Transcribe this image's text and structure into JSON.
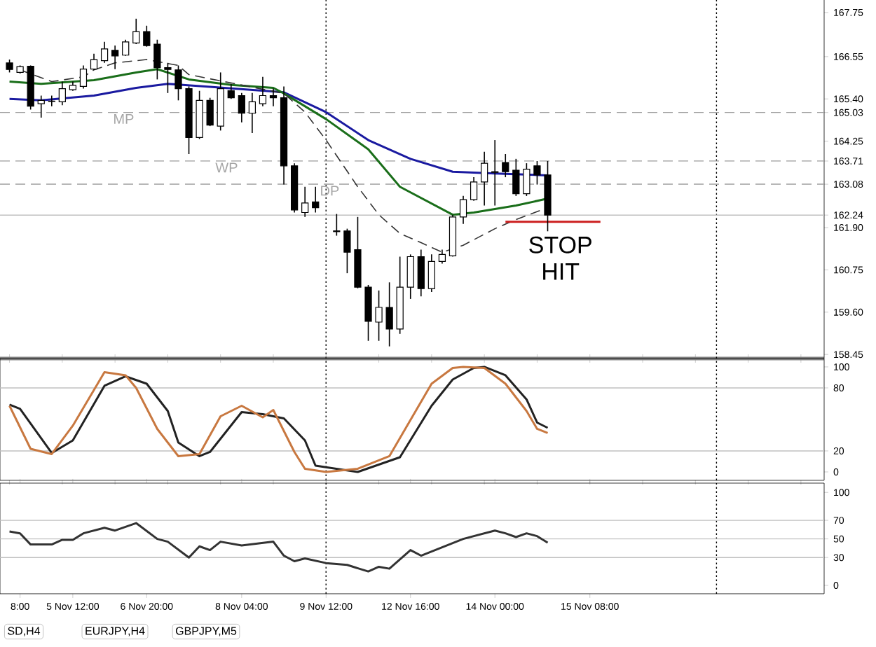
{
  "chart_data": [
    {
      "type": "candlestick",
      "ylim": [
        158.34,
        168.09
      ],
      "tick_labels": "y",
      "categories": [
        null,
        null,
        null,
        null,
        null,
        null,
        null,
        null,
        null,
        null,
        null,
        null,
        null,
        null,
        null,
        null,
        null,
        null,
        null,
        null,
        null,
        null,
        null,
        null,
        null,
        null,
        null,
        null,
        null,
        null,
        null,
        null,
        null,
        null,
        null,
        null,
        null,
        null,
        null,
        null,
        null,
        null,
        null,
        null,
        null,
        null,
        null,
        null,
        null,
        null,
        null,
        null,
        null,
        null,
        null,
        null,
        null,
        null,
        null,
        null,
        null,
        null,
        null,
        null,
        null,
        null,
        null,
        null,
        null,
        null,
        null,
        null,
        null,
        null,
        null,
        null,
        null,
        null
      ],
      "ohlc": [
        [
          166.38,
          166.47,
          166.12,
          166.2
        ],
        [
          166.12,
          166.31,
          166.09,
          166.28
        ],
        [
          166.29,
          166.31,
          165.11,
          165.2
        ],
        [
          165.27,
          165.49,
          164.89,
          165.36
        ],
        [
          165.33,
          165.49,
          165.2,
          165.34
        ],
        [
          165.32,
          165.87,
          165.23,
          165.68
        ],
        [
          165.65,
          165.87,
          165.62,
          165.77
        ],
        [
          165.74,
          166.31,
          165.68,
          166.21
        ],
        [
          166.21,
          166.63,
          166.19,
          166.47
        ],
        [
          166.44,
          166.95,
          166.38,
          166.76
        ],
        [
          166.72,
          166.85,
          166.21,
          166.57
        ],
        [
          166.59,
          167.01,
          166.57,
          166.95
        ],
        [
          166.92,
          167.58,
          166.89,
          167.23
        ],
        [
          167.23,
          167.39,
          166.82,
          166.85
        ],
        [
          166.89,
          167.01,
          165.93,
          166.25
        ],
        [
          166.25,
          166.38,
          165.56,
          166.2
        ],
        [
          166.19,
          166.31,
          165.36,
          165.68
        ],
        [
          165.68,
          165.74,
          163.9,
          164.35
        ],
        [
          164.35,
          165.62,
          164.31,
          165.36
        ],
        [
          165.36,
          165.43,
          164.66,
          164.69
        ],
        [
          164.66,
          166.12,
          164.54,
          165.68
        ],
        [
          165.62,
          165.81,
          165.4,
          165.43
        ],
        [
          165.49,
          165.56,
          164.76,
          165.01
        ],
        [
          165.01,
          165.56,
          164.47,
          165.32
        ],
        [
          165.27,
          166.0,
          165.2,
          165.49
        ],
        [
          165.49,
          165.68,
          165.2,
          165.43
        ],
        [
          165.43,
          165.74,
          163.07,
          163.58
        ],
        [
          163.58,
          163.65,
          162.31,
          162.38
        ],
        [
          162.31,
          163.01,
          162.19,
          162.57
        ],
        [
          162.6,
          163.01,
          162.31,
          162.44
        ],
        null,
        [
          161.81,
          162.27,
          161.68,
          161.79
        ],
        [
          161.81,
          161.87,
          160.66,
          161.23
        ],
        [
          161.3,
          162.19,
          160.25,
          160.28
        ],
        [
          160.28,
          160.34,
          158.82,
          159.35
        ],
        [
          159.33,
          160.19,
          158.82,
          159.73
        ],
        [
          159.73,
          160.41,
          158.67,
          159.14
        ],
        [
          159.14,
          161.11,
          159.01,
          160.28
        ],
        [
          160.28,
          161.17,
          159.96,
          161.11
        ],
        [
          161.11,
          161.3,
          160.03,
          160.24
        ],
        [
          160.24,
          161.17,
          160.15,
          160.98
        ],
        [
          160.98,
          161.3,
          160.92,
          161.17
        ],
        [
          161.13,
          162.25,
          161.11,
          162.19
        ],
        [
          162.19,
          162.76,
          162.0,
          162.66
        ],
        [
          162.66,
          163.27,
          162.63,
          163.14
        ],
        [
          163.14,
          163.96,
          162.5,
          163.65
        ],
        [
          163.4,
          164.28,
          162.5,
          163.42
        ],
        [
          163.67,
          163.9,
          163.27,
          163.42
        ],
        [
          163.46,
          163.77,
          162.76,
          162.82
        ],
        [
          162.82,
          163.65,
          162.76,
          163.49
        ],
        [
          163.58,
          163.71,
          163.07,
          163.33
        ],
        [
          163.33,
          163.71,
          161.8,
          162.24
        ],
        null,
        null,
        null,
        null,
        null,
        null,
        null,
        null,
        null,
        null,
        null,
        null,
        null,
        null,
        null,
        null,
        null,
        null,
        null,
        null,
        null,
        null,
        null,
        null,
        null,
        null
      ],
      "series": [
        {
          "type": "line",
          "color": "#1a1aa0",
          "line_style": "solid",
          "values": [
            165.4,
            null,
            null,
            165.36,
            null,
            null,
            null,
            null,
            165.49,
            null,
            null,
            null,
            165.7,
            null,
            null,
            165.81,
            null,
            null,
            null,
            165.73,
            null,
            null,
            null,
            null,
            null,
            null,
            165.58,
            null,
            null,
            null,
            165.04,
            null,
            null,
            null,
            164.28,
            null,
            null,
            null,
            163.77,
            null,
            null,
            null,
            163.42,
            null,
            null,
            null,
            163.37,
            null,
            null,
            null,
            null,
            163.32,
            null,
            null,
            null,
            null,
            null,
            null,
            null,
            null,
            null,
            null,
            null,
            null,
            null,
            null,
            null,
            null,
            null,
            null,
            null,
            null,
            null,
            null,
            null,
            null,
            null,
            null
          ]
        },
        {
          "type": "line",
          "color": "#1a6e1a",
          "line_style": "solid",
          "values": [
            165.87,
            null,
            null,
            165.81,
            null,
            null,
            null,
            null,
            165.91,
            null,
            null,
            null,
            166.12,
            null,
            166.21,
            null,
            null,
            165.93,
            null,
            null,
            null,
            165.78,
            null,
            null,
            null,
            165.7,
            165.55,
            null,
            null,
            null,
            164.85,
            null,
            null,
            null,
            164.03,
            null,
            null,
            163.01,
            null,
            null,
            null,
            null,
            162.25,
            null,
            162.31,
            null,
            null,
            null,
            162.5,
            null,
            null,
            162.69,
            null,
            null,
            null,
            null,
            null,
            null,
            null,
            null,
            null,
            null,
            null,
            null,
            null,
            null,
            null,
            null,
            null,
            null,
            null,
            null,
            null,
            null,
            null,
            null,
            null,
            null
          ]
        },
        {
          "type": "line",
          "color": "#333333",
          "line_style": "dashed",
          "values": [
            null,
            166.19,
            null,
            null,
            165.87,
            null,
            null,
            166.0,
            166.19,
            null,
            166.38,
            null,
            null,
            166.47,
            null,
            null,
            166.31,
            166.06,
            null,
            null,
            null,
            null,
            null,
            null,
            null,
            null,
            165.55,
            null,
            165.04,
            null,
            164.28,
            null,
            null,
            163.01,
            null,
            162.25,
            null,
            161.74,
            null,
            161.49,
            null,
            161.23,
            null,
            161.42,
            null,
            null,
            161.87,
            null,
            162.12,
            null,
            null,
            162.44,
            null,
            null,
            null,
            null,
            null,
            null,
            null,
            null,
            null,
            null,
            null,
            null,
            null,
            null,
            null,
            null,
            null,
            null,
            null,
            null,
            null,
            null,
            null,
            null,
            null,
            null
          ]
        },
        {
          "type": "line",
          "color": "#cc1f1f",
          "line_style": "solid",
          "values": [
            null,
            null,
            null,
            null,
            null,
            null,
            null,
            null,
            null,
            null,
            null,
            null,
            null,
            null,
            null,
            null,
            null,
            null,
            null,
            null,
            null,
            null,
            null,
            null,
            null,
            null,
            null,
            null,
            null,
            null,
            null,
            null,
            null,
            null,
            null,
            null,
            null,
            null,
            null,
            null,
            null,
            null,
            null,
            null,
            null,
            null,
            null,
            162.06,
            null,
            null,
            null,
            null,
            null,
            null,
            null,
            null,
            162.06,
            null,
            null,
            null,
            null,
            null,
            null,
            null,
            null,
            null,
            null,
            null,
            null,
            null,
            null,
            null,
            null,
            null,
            null,
            null,
            null,
            null
          ]
        }
      ],
      "yticks": [
        {
          "value": 167.75,
          "label": "167.75"
        },
        {
          "value": 166.55,
          "label": "166.55"
        },
        {
          "value": 165.4,
          "label": "165.40"
        },
        {
          "value": 165.03,
          "label": "165.03"
        },
        {
          "value": 164.25,
          "label": "164.25"
        },
        {
          "value": 163.71,
          "label": "163.71"
        },
        {
          "value": 163.08,
          "label": "163.08"
        },
        {
          "value": 162.24,
          "label": "162.24"
        },
        {
          "value": 161.9,
          "label": "161.90"
        },
        {
          "value": 160.75,
          "label": "160.75"
        },
        {
          "value": 159.6,
          "label": "159.60"
        },
        {
          "value": 158.45,
          "label": "158.45"
        }
      ],
      "ref_lines": [
        {
          "axis": "y",
          "value": 165.03,
          "label": "MP",
          "color": "#a0a0a0",
          "line_style": "dashed"
        },
        {
          "axis": "y",
          "value": 163.71,
          "label": "WP",
          "color": "#a0a0a0",
          "line_style": "dashed"
        },
        {
          "axis": "y",
          "value": 163.08,
          "label": "DP",
          "color": "#a0a0a0",
          "line_style": "dashed"
        },
        {
          "axis": "y",
          "value": 162.24,
          "color": "#c0c0c0",
          "line_style": "solid"
        }
      ],
      "annotations": [
        "STOP HIT"
      ]
    },
    {
      "type": "line",
      "ylim": [
        -8,
        108
      ],
      "yticks": [
        0,
        20,
        80,
        100
      ],
      "tick_labels": "y",
      "categories": [
        null,
        null,
        null,
        null,
        null,
        null,
        null,
        null,
        null,
        null,
        null,
        null,
        null,
        null,
        null,
        null,
        null,
        null,
        null,
        null,
        null,
        null,
        null,
        null,
        null,
        null,
        null,
        null,
        null,
        null,
        null,
        null,
        null,
        null,
        null,
        null,
        null,
        null,
        null,
        null,
        null,
        null,
        null,
        null,
        null,
        null,
        null,
        null,
        null,
        null,
        null,
        null,
        null,
        null,
        null,
        null,
        null,
        null,
        null,
        null,
        null,
        null,
        null,
        null,
        null,
        null,
        null,
        null,
        null,
        null,
        null,
        null,
        null,
        null,
        null,
        null,
        null,
        null
      ],
      "series": [
        {
          "color": "#222222",
          "values": [
            64,
            60,
            null,
            null,
            18,
            null,
            30,
            null,
            null,
            82,
            null,
            91,
            null,
            84,
            null,
            58,
            28,
            null,
            15,
            19,
            null,
            null,
            57,
            null,
            55,
            null,
            51,
            null,
            30,
            6,
            null,
            null,
            null,
            0,
            null,
            null,
            null,
            14,
            null,
            null,
            63,
            null,
            88,
            null,
            99,
            100,
            null,
            92,
            null,
            69,
            47,
            42,
            null,
            null,
            null,
            null,
            null,
            null,
            null,
            null,
            null,
            null,
            null,
            null,
            null,
            null,
            null,
            null,
            null,
            null,
            null,
            null,
            null,
            null,
            null,
            null,
            null,
            null
          ]
        },
        {
          "color": "#c87840",
          "values": [
            63,
            null,
            22,
            null,
            17,
            null,
            44,
            null,
            null,
            95,
            null,
            92,
            80,
            null,
            41,
            null,
            15,
            null,
            17,
            null,
            53,
            null,
            63,
            null,
            52,
            59,
            null,
            19,
            3,
            null,
            0,
            null,
            null,
            3,
            null,
            null,
            15,
            null,
            null,
            null,
            84,
            null,
            99,
            100,
            null,
            99,
            null,
            84,
            null,
            58,
            41,
            37,
            null,
            null,
            null,
            null,
            null,
            null,
            null,
            null,
            null,
            null,
            null,
            null,
            null,
            null,
            null,
            null,
            null,
            null,
            null,
            null,
            null,
            null,
            null,
            null,
            null,
            null
          ]
        }
      ],
      "ref_lines": [
        {
          "axis": "y",
          "value": 20,
          "color": "#c0c0c0",
          "line_style": "solid"
        },
        {
          "axis": "y",
          "value": 80,
          "color": "#c0c0c0",
          "line_style": "solid"
        }
      ]
    },
    {
      "type": "line",
      "ylim": [
        -9,
        110
      ],
      "yticks": [
        0,
        30,
        50,
        70,
        100
      ],
      "categories": [
        null,
        "8:00",
        null,
        null,
        null,
        null,
        "5 Nov 12:00",
        null,
        null,
        null,
        null,
        null,
        null,
        "6 Nov 20:00",
        null,
        null,
        null,
        null,
        null,
        null,
        null,
        null,
        "8 Nov 04:00",
        null,
        null,
        null,
        null,
        null,
        null,
        null,
        "9 Nov 12:00",
        null,
        null,
        null,
        null,
        null,
        null,
        null,
        "12 Nov 16:00",
        null,
        null,
        null,
        null,
        null,
        null,
        null,
        "14 Nov 00:00",
        null,
        null,
        null,
        null,
        null,
        null,
        null,
        null,
        "15 Nov 08:00",
        null,
        null,
        null,
        null,
        null,
        null,
        null,
        null,
        null,
        null,
        null,
        null,
        null,
        null,
        null,
        null,
        null,
        null,
        null,
        null,
        null,
        null
      ],
      "series": [
        {
          "color": "#333333",
          "values": [
            58,
            56,
            44,
            null,
            44,
            49,
            49,
            56,
            null,
            62,
            59,
            null,
            67,
            null,
            50,
            47,
            null,
            30,
            42,
            38,
            47,
            null,
            43,
            null,
            null,
            47,
            32,
            26,
            29,
            null,
            24,
            null,
            22,
            null,
            15,
            20,
            18,
            null,
            38,
            32,
            null,
            41,
            null,
            50,
            null,
            null,
            59,
            56,
            52,
            56,
            53,
            46,
            null,
            null,
            null,
            null,
            null,
            null,
            null,
            null,
            null,
            null,
            null,
            null,
            null,
            null,
            null,
            null,
            null,
            null,
            null,
            null,
            null,
            null,
            null,
            null,
            null,
            null
          ]
        }
      ],
      "ref_lines": [
        {
          "axis": "y",
          "value": 30,
          "color": "#c0c0c0",
          "line_style": "solid"
        },
        {
          "axis": "y",
          "value": 50,
          "color": "#c0c0c0",
          "line_style": "solid"
        },
        {
          "axis": "y",
          "value": 70,
          "color": "#c0c0c0",
          "line_style": "solid"
        }
      ],
      "annotations": [
        "SD,H4",
        "EURJPY,H4",
        "GBPJPY,M5"
      ]
    }
  ]
}
